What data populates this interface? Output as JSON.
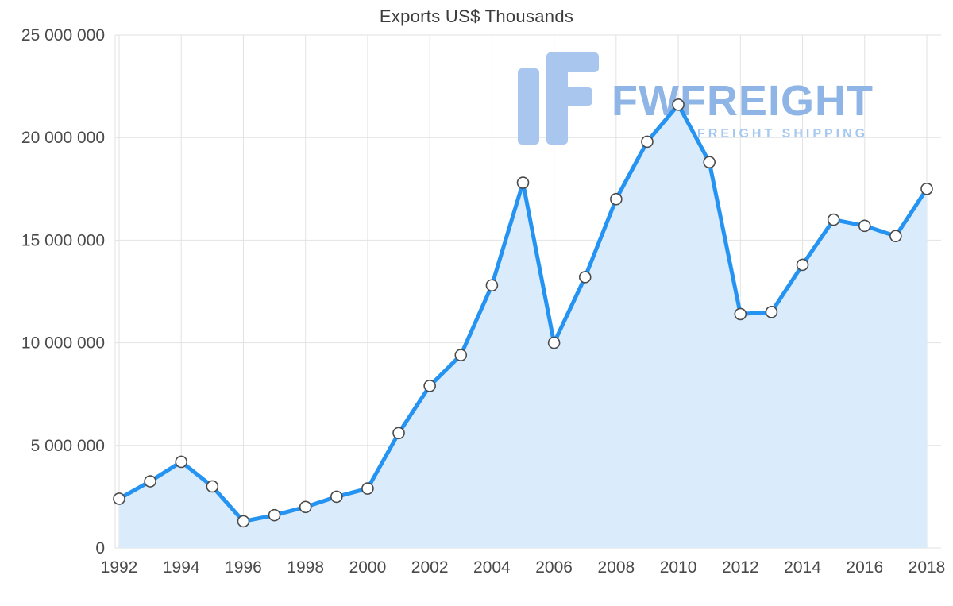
{
  "watermark": {
    "brand": "FWFREIGHT",
    "tagline": "FREIGHT SHIPPING"
  },
  "chart_data": {
    "type": "area",
    "title": "Exports US$ Thousands",
    "xlabel": "",
    "ylabel": "",
    "x": [
      1992,
      1993,
      1994,
      1995,
      1996,
      1997,
      1998,
      1999,
      2000,
      2001,
      2002,
      2003,
      2004,
      2005,
      2006,
      2007,
      2008,
      2009,
      2010,
      2011,
      2012,
      2013,
      2014,
      2015,
      2016,
      2017,
      2018
    ],
    "values": [
      2400000,
      3250000,
      4200000,
      3000000,
      1300000,
      1600000,
      2000000,
      2500000,
      2900000,
      5600000,
      7900000,
      9400000,
      12800000,
      17800000,
      10000000,
      13200000,
      17000000,
      19800000,
      21600000,
      18800000,
      11400000,
      11500000,
      13800000,
      16000000,
      15700000,
      15200000,
      17500000
    ],
    "ylim": [
      0,
      25000000
    ],
    "ytick_interval": 5000000,
    "ytick_labels": [
      "0",
      "5 000 000",
      "10 000 000",
      "15 000 000",
      "20 000 000",
      "25 000 000"
    ],
    "xtick_interval": 2,
    "xtick_labels": [
      "1992",
      "1994",
      "1996",
      "1998",
      "2000",
      "2002",
      "2004",
      "2006",
      "2008",
      "2010",
      "2012",
      "2014",
      "2016",
      "2018"
    ],
    "grid": true,
    "legend": false,
    "colors": {
      "line": "#2493f2",
      "fill": "#daecfc",
      "marker_fill": "#ffffff",
      "marker_stroke": "#4a4a4a",
      "grid": "#e2e2e2",
      "axis_text": "#4a4a4a",
      "title_text": "#3c3c3c",
      "watermark_icon": "#a9c6ee",
      "watermark_brand": "#8fb4e6",
      "watermark_tagline": "#a5c8f0"
    }
  }
}
